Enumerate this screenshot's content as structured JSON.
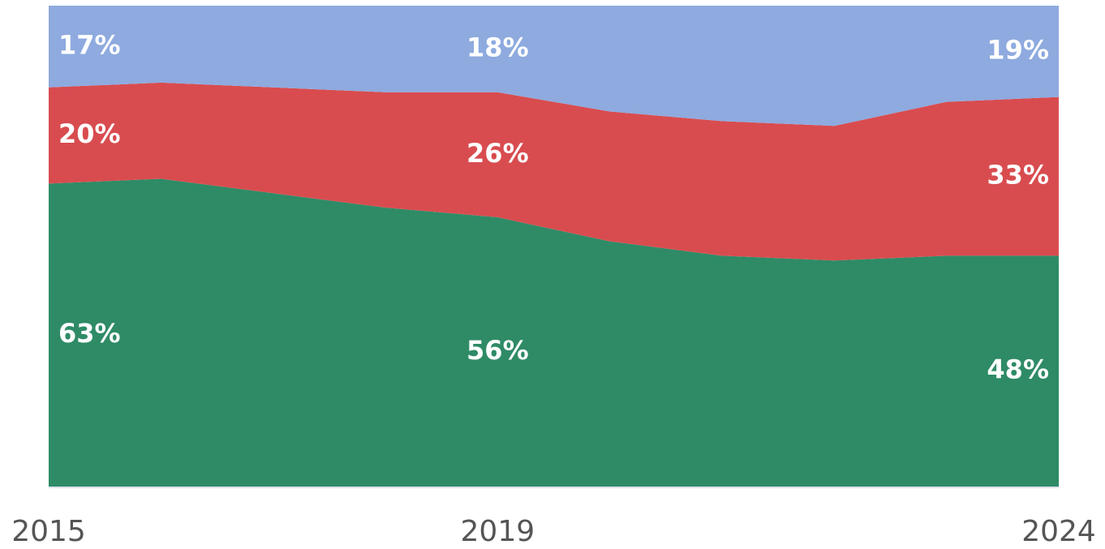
{
  "chart_data": {
    "type": "stacked-area",
    "x": [
      2015,
      2016,
      2017,
      2018,
      2019,
      2020,
      2021,
      2022,
      2023,
      2024
    ],
    "xlim": [
      2015,
      2024
    ],
    "xticks": [
      2015,
      2019,
      2024
    ],
    "ylim": [
      0,
      100
    ],
    "series": [
      {
        "color": "#2e8b66",
        "values": [
          63,
          64,
          61,
          58,
          56,
          51,
          48,
          47,
          48,
          48
        ],
        "value_labels": [
          "63%",
          null,
          null,
          null,
          "56%",
          null,
          null,
          null,
          null,
          "48%"
        ]
      },
      {
        "color": "#d84c4f",
        "values": [
          20,
          20,
          22,
          24,
          26,
          27,
          28,
          28,
          32,
          33
        ],
        "value_labels": [
          "20%",
          null,
          null,
          null,
          "26%",
          null,
          null,
          null,
          null,
          "33%"
        ]
      },
      {
        "color": "#8eaadf",
        "values": [
          17,
          16,
          17,
          18,
          18,
          22,
          24,
          25,
          20,
          19
        ],
        "value_labels": [
          "17%",
          null,
          null,
          null,
          "18%",
          null,
          null,
          null,
          null,
          "19%"
        ]
      }
    ]
  }
}
